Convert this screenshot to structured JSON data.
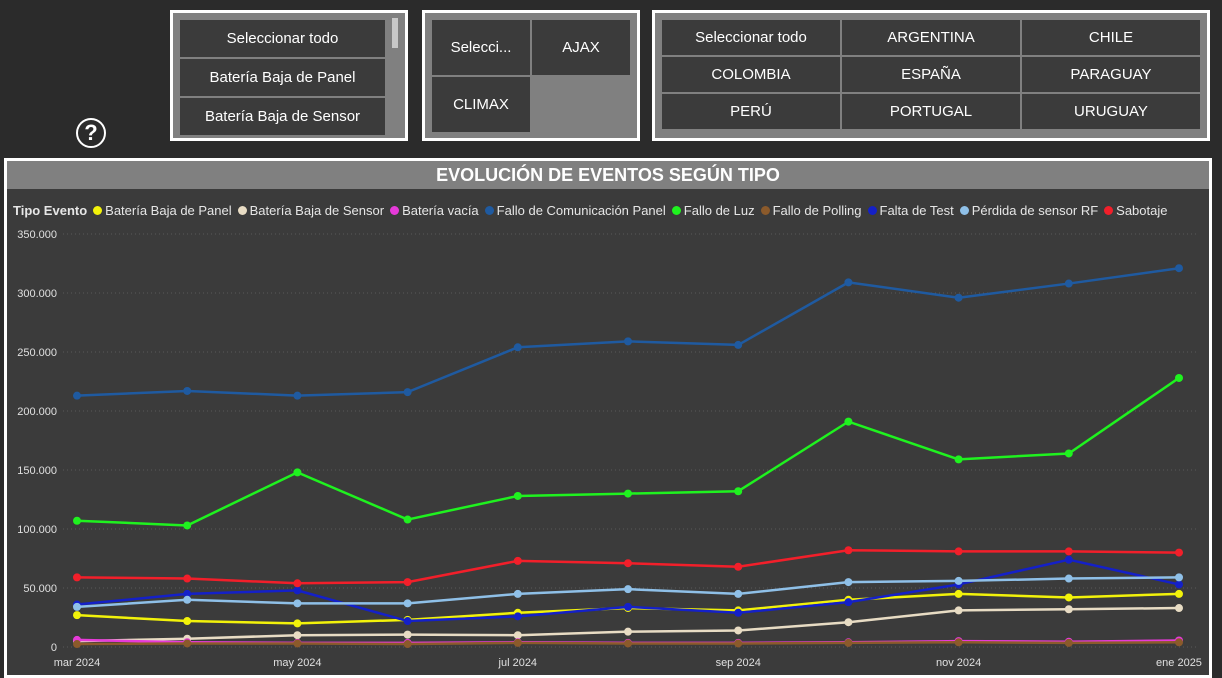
{
  "help_icon": {
    "glyph": "?"
  },
  "slicer_tipo": {
    "items": [
      "Seleccionar todo",
      "Batería Baja de Panel",
      "Batería Baja de Sensor"
    ]
  },
  "slicer_marca": {
    "items": [
      "Selecci...",
      "AJAX",
      "CLIMAX"
    ]
  },
  "slicer_pais": {
    "items": [
      "Seleccionar todo",
      "ARGENTINA",
      "CHILE",
      "COLOMBIA",
      "ESPAÑA",
      "PARAGUAY",
      "PERÚ",
      "PORTUGAL",
      "URUGUAY"
    ]
  },
  "chart_data": {
    "type": "line",
    "title": "EVOLUCIÓN DE EVENTOS SEGÚN TIPO",
    "legend_title": "Tipo Evento",
    "legend_position": "top-left",
    "grid": true,
    "x": [
      "mar 2024",
      "abr 2024",
      "may 2024",
      "jun 2024",
      "jul 2024",
      "ago 2024",
      "sep 2024",
      "oct 2024",
      "nov 2024",
      "dic 2024",
      "ene 2025"
    ],
    "x_tick_labels": [
      "mar 2024",
      "may 2024",
      "jul 2024",
      "sep 2024",
      "nov 2024",
      "ene 2025"
    ],
    "ylim": [
      0,
      350000
    ],
    "y_ticks": [
      0,
      50000,
      100000,
      150000,
      200000,
      250000,
      300000,
      350000
    ],
    "y_tick_labels": [
      "0",
      "50.000",
      "100.000",
      "150.000",
      "200.000",
      "250.000",
      "300.000",
      "350.000"
    ],
    "series": [
      {
        "name": "Batería Baja de Panel",
        "color": "#f2f20a",
        "values": [
          27000,
          22000,
          20000,
          23000,
          29000,
          33000,
          31000,
          40000,
          45000,
          42000,
          45000
        ]
      },
      {
        "name": "Batería Baja de Sensor",
        "color": "#e8dcc4",
        "values": [
          5000,
          7000,
          10000,
          10500,
          10000,
          13000,
          14000,
          21000,
          31000,
          32000,
          33000
        ]
      },
      {
        "name": "Batería vacía",
        "color": "#e63ad9",
        "values": [
          6000,
          4000,
          3500,
          3500,
          4000,
          3500,
          3500,
          4000,
          5000,
          4500,
          5500
        ]
      },
      {
        "name": "Fallo de Comunicación Panel",
        "color": "#1f5aa0",
        "values": [
          213000,
          217000,
          213000,
          216000,
          254000,
          259000,
          256000,
          309000,
          296000,
          308000,
          321000
        ]
      },
      {
        "name": "Fallo de Luz",
        "color": "#1ff21f",
        "values": [
          107000,
          103000,
          148000,
          108000,
          128000,
          130000,
          132000,
          191000,
          159000,
          164000,
          228000
        ]
      },
      {
        "name": "Fallo de Polling",
        "color": "#8b5a2b",
        "values": [
          2500,
          3000,
          3000,
          2500,
          3500,
          3000,
          3000,
          3500,
          4000,
          3500,
          4000
        ]
      },
      {
        "name": "Falta de Test",
        "color": "#1420c8",
        "values": [
          36000,
          45000,
          48000,
          22000,
          26000,
          34000,
          29000,
          38000,
          53000,
          74000,
          53000
        ]
      },
      {
        "name": "Pérdida de sensor RF",
        "color": "#8fc0e8",
        "values": [
          34000,
          40000,
          37000,
          37000,
          45000,
          49000,
          45000,
          55000,
          56000,
          58000,
          59000
        ]
      },
      {
        "name": "Sabotaje",
        "color": "#f21f2a",
        "values": [
          59000,
          58000,
          54000,
          55000,
          73000,
          71000,
          68000,
          82000,
          81000,
          81000,
          80000
        ]
      }
    ]
  }
}
